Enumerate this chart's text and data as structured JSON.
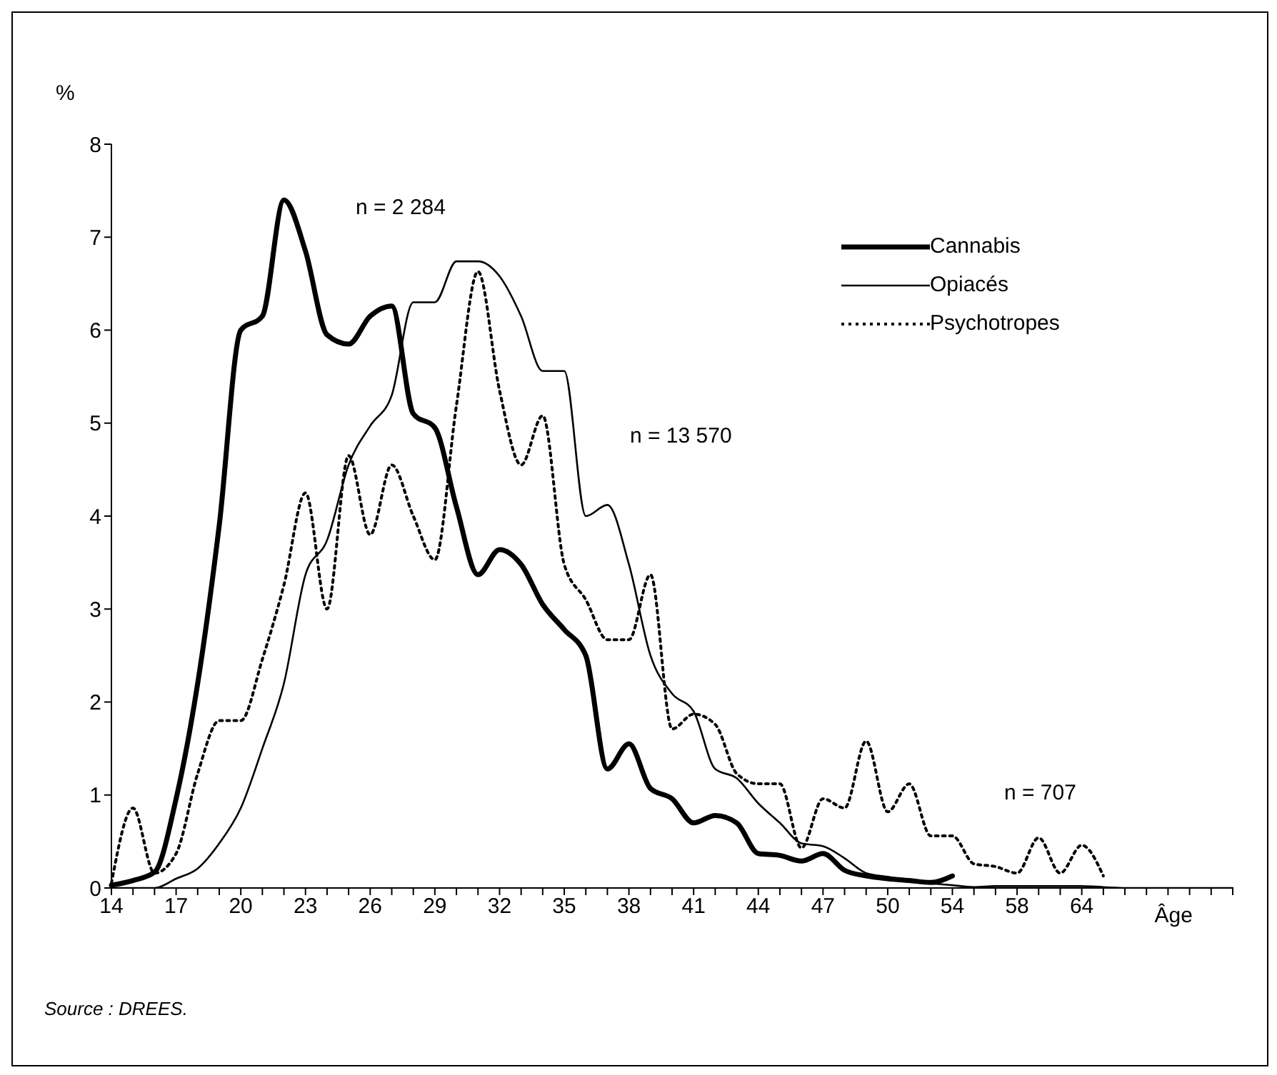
{
  "chart_data": {
    "type": "line",
    "ylabel": "%",
    "xlabel": "Âge",
    "categories": [
      "14",
      null,
      null,
      "17",
      null,
      null,
      "20",
      null,
      null,
      "23",
      null,
      null,
      "26",
      null,
      null,
      "29",
      null,
      null,
      "32",
      null,
      null,
      "35",
      null,
      null,
      "38",
      null,
      null,
      "41",
      null,
      null,
      "44",
      null,
      null,
      "47",
      null,
      null,
      "50",
      null,
      null,
      "54",
      null,
      null,
      "58",
      null,
      null,
      "64",
      null,
      null,
      null,
      null,
      null,
      null,
      null
    ],
    "series": [
      {
        "name": "Cannabis",
        "color": "#000000",
        "line_style": "solid",
        "values": [
          0.03,
          0.08,
          0.17,
          0.96,
          2.2,
          3.9,
          6.0,
          6.15,
          7.4,
          6.85,
          5.95,
          5.85,
          6.15,
          6.26,
          5.1,
          4.95,
          4.1,
          3.37,
          3.64,
          3.48,
          3.05,
          2.78,
          2.5,
          1.28,
          1.55,
          1.07,
          0.96,
          0.7,
          0.78,
          0.7,
          0.37,
          0.35,
          0.29,
          0.37,
          0.19,
          0.13,
          0.1,
          0.08,
          0.06,
          0.13,
          null,
          null,
          null,
          null,
          null,
          null,
          null,
          null,
          null,
          null,
          null,
          null,
          null
        ]
      },
      {
        "name": "Opiacés",
        "color": "#000000",
        "line_style": "solid",
        "values": [
          0,
          0,
          0,
          0.1,
          0.21,
          0.48,
          0.86,
          1.5,
          2.2,
          3.37,
          3.74,
          4.55,
          4.97,
          5.3,
          6.3,
          6.3,
          6.74,
          6.74,
          6.58,
          6.15,
          5.56,
          5.56,
          4.0,
          4.12,
          3.48,
          2.5,
          2.09,
          1.9,
          1.28,
          1.18,
          0.91,
          0.7,
          0.48,
          0.45,
          0.32,
          0.16,
          0.12,
          0.08,
          0.05,
          0.03,
          0.01,
          0.02,
          0.02,
          0.02,
          0.02,
          0.02,
          0.01,
          0,
          0,
          0,
          0,
          0,
          0
        ]
      },
      {
        "name": "Psychotropes",
        "color": "#000000",
        "line_style": "dotted",
        "values": [
          0.05,
          0.86,
          0.16,
          0.37,
          1.23,
          1.8,
          1.8,
          2.46,
          3.26,
          4.25,
          3.0,
          4.65,
          3.8,
          4.55,
          4.0,
          3.53,
          5.19,
          6.63,
          5.35,
          4.55,
          5.08,
          3.48,
          3.1,
          2.67,
          2.67,
          3.37,
          1.71,
          1.87,
          1.76,
          1.23,
          1.12,
          1.12,
          0.43,
          0.96,
          0.86,
          1.58,
          0.82,
          1.12,
          0.56,
          0.56,
          0.26,
          0.23,
          0.16,
          0.54,
          0.16,
          0.46,
          0.13,
          null,
          null,
          null,
          null,
          null,
          null
        ]
      }
    ],
    "ylim": [
      0,
      8
    ],
    "yticks": [
      0,
      1,
      2,
      3,
      4,
      5,
      6,
      7,
      8
    ],
    "legend": "top right",
    "marker": "none",
    "annotations": [
      "n = 2 284",
      "n = 13 570",
      "n = 707",
      "Source : DREES."
    ]
  }
}
